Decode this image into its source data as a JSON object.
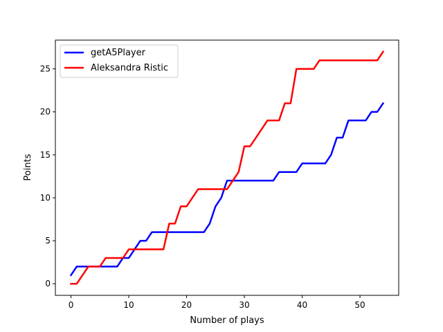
{
  "chart_data": {
    "type": "line",
    "title": "",
    "xlabel": "Number of plays",
    "ylabel": "Points",
    "xlim": [
      -2.7,
      56.7
    ],
    "ylim": [
      -1.35,
      28.35
    ],
    "xticks": [
      0,
      10,
      20,
      30,
      40,
      50
    ],
    "yticks": [
      0,
      5,
      10,
      15,
      20,
      25
    ],
    "grid": false,
    "legend_position": "upper-left",
    "series": [
      {
        "name": "getA5Player",
        "color": "#0000ff",
        "values": [
          1,
          2,
          2,
          2,
          2,
          2,
          2,
          2,
          2,
          3,
          3,
          4,
          5,
          5,
          6,
          6,
          6,
          6,
          6,
          6,
          6,
          6,
          6,
          6,
          7,
          9,
          10,
          12,
          12,
          12,
          12,
          12,
          12,
          12,
          12,
          12,
          13,
          13,
          13,
          13,
          14,
          14,
          14,
          14,
          14,
          15,
          17,
          17,
          19,
          19,
          19,
          19,
          20,
          20,
          21
        ]
      },
      {
        "name": "Aleksandra Ristic",
        "color": "#ff0000",
        "values": [
          0,
          0,
          1,
          2,
          2,
          2,
          3,
          3,
          3,
          3,
          4,
          4,
          4,
          4,
          4,
          4,
          4,
          7,
          7,
          9,
          9,
          10,
          11,
          11,
          11,
          11,
          11,
          11,
          12,
          13,
          16,
          16,
          17,
          18,
          19,
          19,
          19,
          21,
          21,
          25,
          25,
          25,
          25,
          26,
          26,
          26,
          26,
          26,
          26,
          26,
          26,
          26,
          26,
          26,
          27
        ]
      }
    ]
  }
}
